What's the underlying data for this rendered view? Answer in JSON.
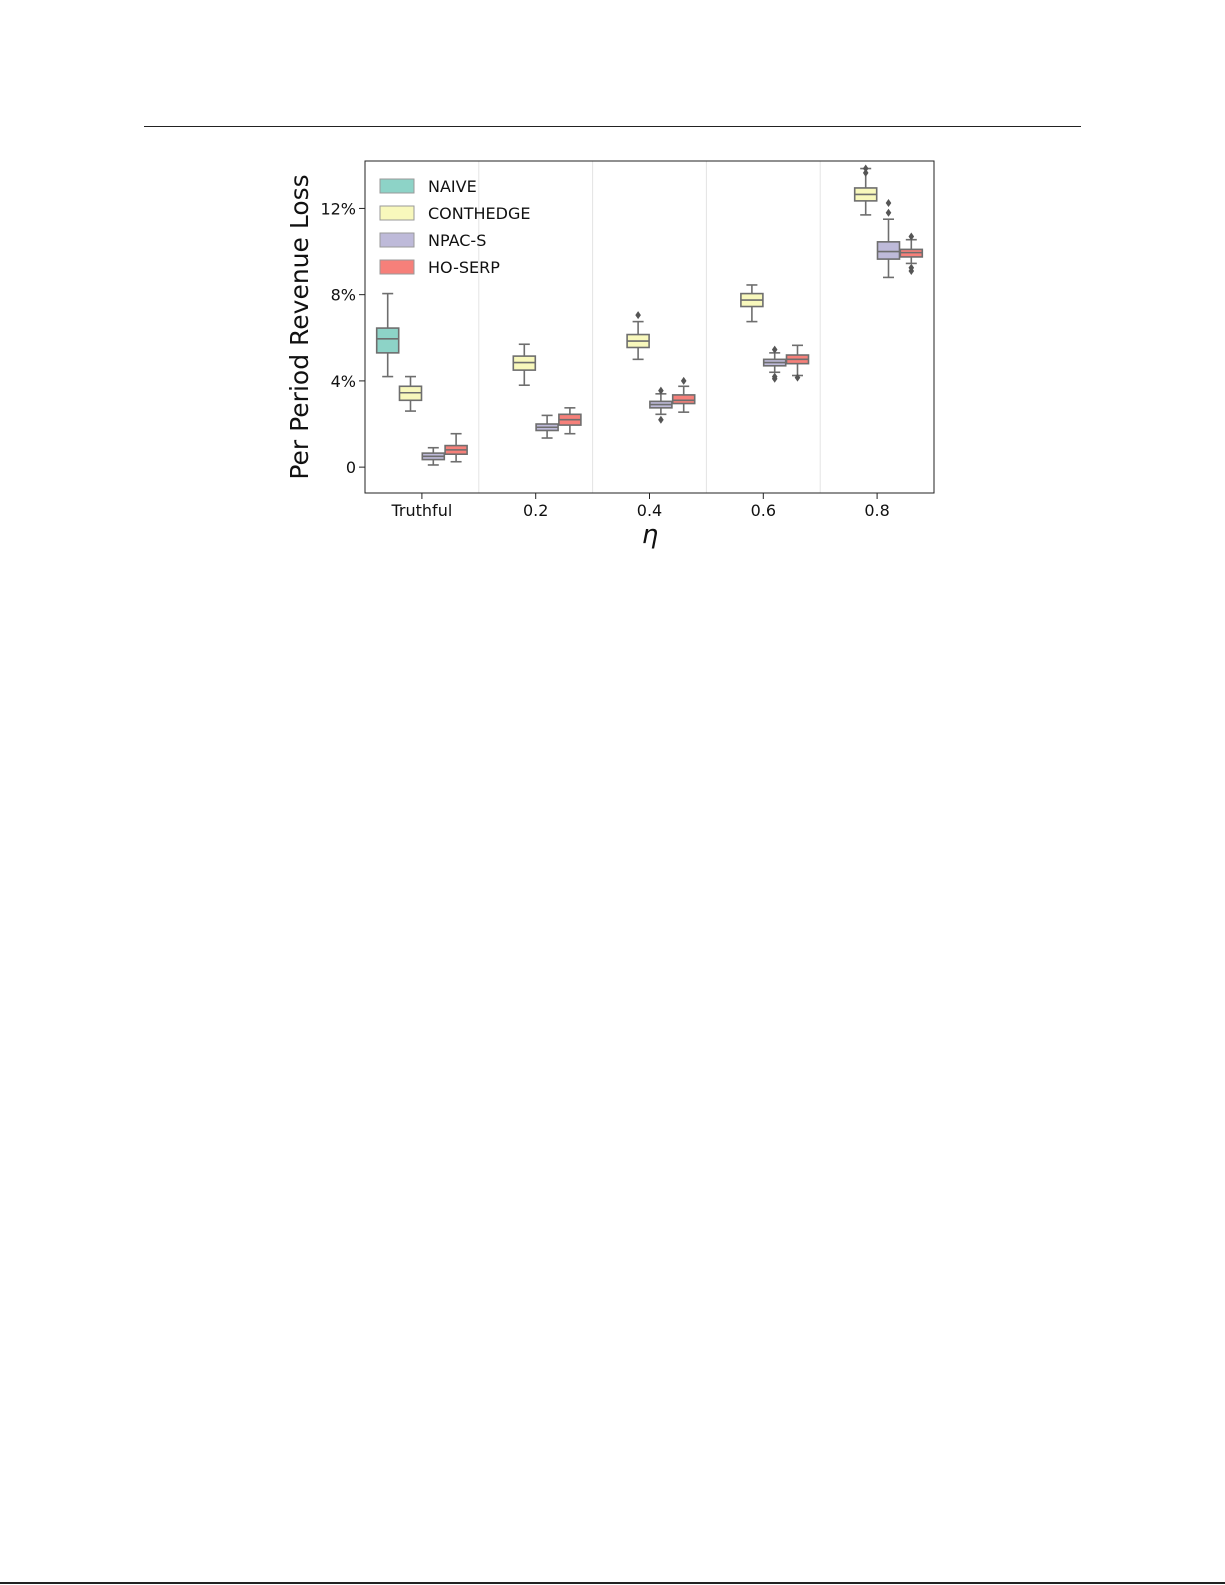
{
  "chart_data": {
    "type": "box",
    "title": "",
    "xlabel": "η",
    "ylabel": "Per Period Revenue Loss",
    "categories": [
      "Truthful",
      "0.2",
      "0.4",
      "0.6",
      "0.8"
    ],
    "ylim": [
      -1.2,
      14.2
    ],
    "yticks": [
      {
        "value": 0,
        "label": "0"
      },
      {
        "value": 4,
        "label": "4%"
      },
      {
        "value": 8,
        "label": "8%"
      },
      {
        "value": 12,
        "label": "12%"
      }
    ],
    "grid": "vertical separators between η groups",
    "legend_position": "top-left",
    "series": [
      {
        "name": "NAIVE",
        "color": "#8dd3c7",
        "boxes": [
          {
            "category": "Truthful",
            "whisker_low": 4.2,
            "q1": 5.3,
            "median": 5.95,
            "q3": 6.45,
            "whisker_high": 8.05,
            "outliers": []
          }
        ]
      },
      {
        "name": "CONTHEDGE",
        "color": "#f8f8bc",
        "boxes": [
          {
            "category": "Truthful",
            "whisker_low": 2.6,
            "q1": 3.1,
            "median": 3.45,
            "q3": 3.75,
            "whisker_high": 4.2,
            "outliers": []
          },
          {
            "category": "0.2",
            "whisker_low": 3.8,
            "q1": 4.5,
            "median": 4.85,
            "q3": 5.15,
            "whisker_high": 5.7,
            "outliers": []
          },
          {
            "category": "0.4",
            "whisker_low": 5.0,
            "q1": 5.55,
            "median": 5.85,
            "q3": 6.15,
            "whisker_high": 6.75,
            "outliers": [
              7.05
            ]
          },
          {
            "category": "0.6",
            "whisker_low": 6.75,
            "q1": 7.45,
            "median": 7.75,
            "q3": 8.05,
            "whisker_high": 8.45,
            "outliers": []
          },
          {
            "category": "0.8",
            "whisker_low": 11.7,
            "q1": 12.35,
            "median": 12.65,
            "q3": 12.95,
            "whisker_high": 13.85,
            "outliers": [
              13.65,
              13.85
            ]
          }
        ]
      },
      {
        "name": "NPAC-S",
        "color": "#bebad9",
        "boxes": [
          {
            "category": "Truthful",
            "whisker_low": 0.1,
            "q1": 0.35,
            "median": 0.5,
            "q3": 0.65,
            "whisker_high": 0.9,
            "outliers": []
          },
          {
            "category": "0.2",
            "whisker_low": 1.35,
            "q1": 1.7,
            "median": 1.85,
            "q3": 2.0,
            "whisker_high": 2.4,
            "outliers": []
          },
          {
            "category": "0.4",
            "whisker_low": 2.45,
            "q1": 2.75,
            "median": 2.9,
            "q3": 3.05,
            "whisker_high": 3.4,
            "outliers": [
              2.2,
              3.55
            ]
          },
          {
            "category": "0.6",
            "whisker_low": 4.4,
            "q1": 4.7,
            "median": 4.85,
            "q3": 5.0,
            "whisker_high": 5.3,
            "outliers": [
              4.1,
              4.2,
              5.45
            ]
          },
          {
            "category": "0.8",
            "whisker_low": 8.8,
            "q1": 9.65,
            "median": 10.0,
            "q3": 10.45,
            "whisker_high": 11.5,
            "outliers": [
              11.8,
              12.25
            ]
          }
        ]
      },
      {
        "name": "HO-SERP",
        "color": "#f6807a",
        "boxes": [
          {
            "category": "Truthful",
            "whisker_low": 0.25,
            "q1": 0.6,
            "median": 0.8,
            "q3": 1.0,
            "whisker_high": 1.55,
            "outliers": []
          },
          {
            "category": "0.2",
            "whisker_low": 1.55,
            "q1": 1.95,
            "median": 2.2,
            "q3": 2.45,
            "whisker_high": 2.75,
            "outliers": []
          },
          {
            "category": "0.4",
            "whisker_low": 2.55,
            "q1": 2.95,
            "median": 3.1,
            "q3": 3.35,
            "whisker_high": 3.75,
            "outliers": [
              4.0
            ]
          },
          {
            "category": "0.6",
            "whisker_low": 4.25,
            "q1": 4.8,
            "median": 5.0,
            "q3": 5.2,
            "whisker_high": 5.65,
            "outliers": [
              4.15
            ]
          },
          {
            "category": "0.8",
            "whisker_low": 9.45,
            "q1": 9.75,
            "median": 9.95,
            "q3": 10.1,
            "whisker_high": 10.55,
            "outliers": [
              9.1,
              9.25,
              10.7
            ]
          }
        ]
      }
    ]
  }
}
